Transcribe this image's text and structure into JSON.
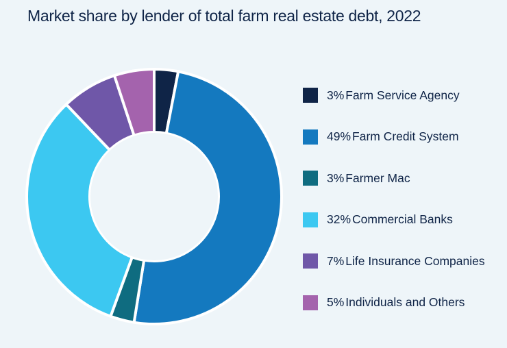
{
  "chart_data": {
    "type": "pie",
    "variant": "donut",
    "title": "Market share by lender of total farm real estate debt, 2022",
    "legend_position": "right",
    "slices": [
      {
        "label": "Farm Service Agency",
        "value": 3,
        "display": "3%",
        "color": "#0f2447"
      },
      {
        "label": "Farm Credit System",
        "value": 49,
        "display": "49%",
        "color": "#1479bf"
      },
      {
        "label": "Farmer Mac",
        "value": 3,
        "display": "3%",
        "color": "#0f6c80"
      },
      {
        "label": "Commercial Banks",
        "value": 32,
        "display": "32%",
        "color": "#3cc8f1"
      },
      {
        "label": "Life Insurance Companies",
        "value": 7,
        "display": "7%",
        "color": "#6f57a8"
      },
      {
        "label": "Individuals and Others",
        "value": 5,
        "display": "5%",
        "color": "#a463ad"
      }
    ]
  }
}
